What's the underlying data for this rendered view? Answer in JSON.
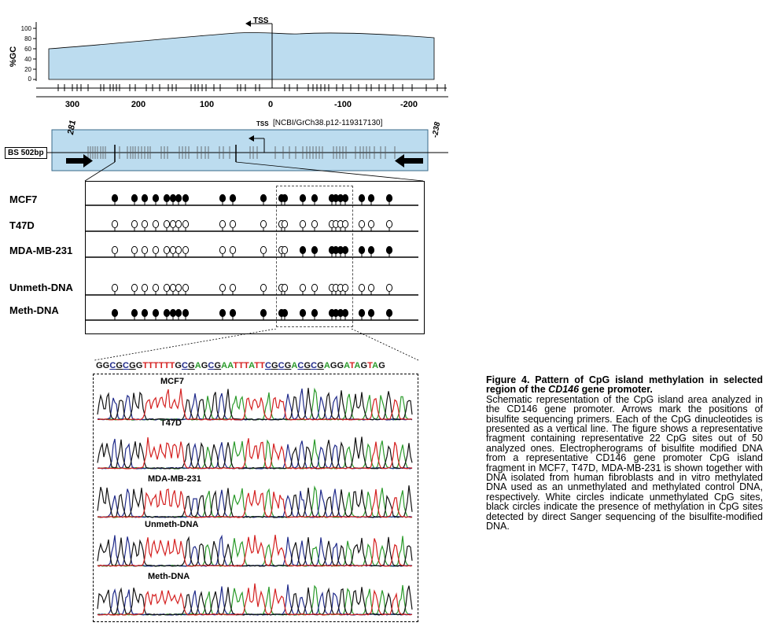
{
  "gc_plot": {
    "ylabel": "%GC",
    "yticks": [
      "100",
      "80",
      "60",
      "40",
      "20",
      "0"
    ],
    "tss_label": "TSS",
    "xticks": [
      "300",
      "200",
      "100",
      "0",
      "-100",
      "-200"
    ]
  },
  "region": {
    "tss_label": "TSS",
    "ncbi_label": "[NCBI/GrCh38.p12-119317130]",
    "left_pos": "281",
    "right_pos": "-238",
    "bs_label": "BS 502bp"
  },
  "samples": [
    {
      "label": "MCF7",
      "methylation": [
        1,
        1,
        1,
        1,
        1,
        1,
        1,
        1,
        1,
        1,
        1,
        1,
        1,
        1,
        1,
        1,
        1,
        1,
        1,
        1,
        1,
        1
      ]
    },
    {
      "label": "T47D",
      "methylation": [
        0,
        0,
        0,
        0,
        0,
        0,
        0,
        0,
        0,
        0,
        0,
        0,
        0,
        0,
        0,
        0,
        0,
        0,
        0,
        0,
        0,
        0
      ]
    },
    {
      "label": "MDA-MB-231",
      "methylation": [
        0,
        0,
        0,
        0,
        0,
        0,
        0,
        0,
        0,
        0,
        0,
        0,
        0,
        1,
        1,
        1,
        1,
        1,
        1,
        1,
        1,
        1
      ]
    },
    {
      "label": "Unmeth-DNA",
      "methylation": [
        0,
        0,
        0,
        0,
        0,
        0,
        0,
        0,
        0,
        0,
        0,
        0,
        0,
        0,
        0,
        0,
        0,
        0,
        0,
        0,
        0,
        0
      ]
    },
    {
      "label": "Meth-DNA",
      "methylation": [
        1,
        1,
        1,
        1,
        1,
        1,
        1,
        1,
        1,
        1,
        1,
        1,
        1,
        1,
        1,
        1,
        1,
        1,
        1,
        1,
        1,
        1
      ]
    }
  ],
  "sequence": "GGCGCGGTTTTTTGCGAGCGAATTTATTCGCGACGCGAGGATAGTAG",
  "electropherograms": [
    "MCF7",
    "T47D",
    "MDA-MB-231",
    "Unmeth-DNA",
    "Meth-DNA"
  ],
  "caption": {
    "title_pre": "Figure 4. Pattern of CpG island methylation in selected region of the ",
    "title_gene": "CD146",
    "title_post": " gene promoter.",
    "body": "Schematic representation of the CpG island area analyzed in the CD146 gene promoter. Arrows mark the positions of bisulfite sequencing primers. Each of the CpG dinucleotides is presented as a vertical line. The figure shows a representative fragment containing representative 22 CpG sites out of 50 analyzed ones. Electropherograms of bisulfite modified DNA from a representative CD146 gene promoter CpG island fragment in MCF7, T47D, MDA-MB-231 is shown together with DNA isolated from human fibroblasts and in vitro methylated DNA used as an unmethylated and methylated control DNA, respectively. White circles indicate unmethylated CpG sites, black circles indicate the presence of methylation in CpG sites detected by direct Sanger sequencing of the bisulfite-modified DNA."
  },
  "colors": {
    "gc_fill": "#bcdcef",
    "region_fill": "#bcdcef",
    "base_A": "#2a9a2a",
    "base_C": "#1f2a8a",
    "base_G": "#111111",
    "base_T": "#d42020"
  }
}
